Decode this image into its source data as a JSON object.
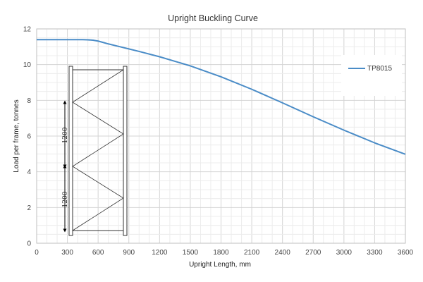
{
  "chart_data": {
    "type": "line",
    "title": "Upright Buckling Curve",
    "xlabel": "Upright Length, mm",
    "ylabel": "Load per frame, tonnes",
    "xlim": [
      0,
      3600
    ],
    "ylim": [
      0,
      12
    ],
    "xticks": [
      0,
      300,
      600,
      900,
      1200,
      1500,
      1800,
      2100,
      2400,
      2700,
      3000,
      3300,
      3600
    ],
    "yticks": [
      0,
      2,
      4,
      6,
      8,
      10,
      12
    ],
    "x_minor_step": 100,
    "y_minor_step": 0.5,
    "grid": true,
    "legend_position": "top-right",
    "series": [
      {
        "name": "TP8015",
        "color": "#4a8cc7",
        "x": [
          0,
          300,
          450,
          500,
          550,
          600,
          650,
          700,
          800,
          900,
          1000,
          1200,
          1500,
          1800,
          2100,
          2400,
          2700,
          3000,
          3300,
          3600
        ],
        "y": [
          11.4,
          11.4,
          11.4,
          11.39,
          11.37,
          11.32,
          11.24,
          11.16,
          11.02,
          10.88,
          10.74,
          10.44,
          9.93,
          9.32,
          8.62,
          7.86,
          7.08,
          6.33,
          5.62,
          4.98
        ]
      }
    ]
  },
  "frame_diagram": {
    "dimension_labels": [
      "1200",
      "1200"
    ]
  }
}
